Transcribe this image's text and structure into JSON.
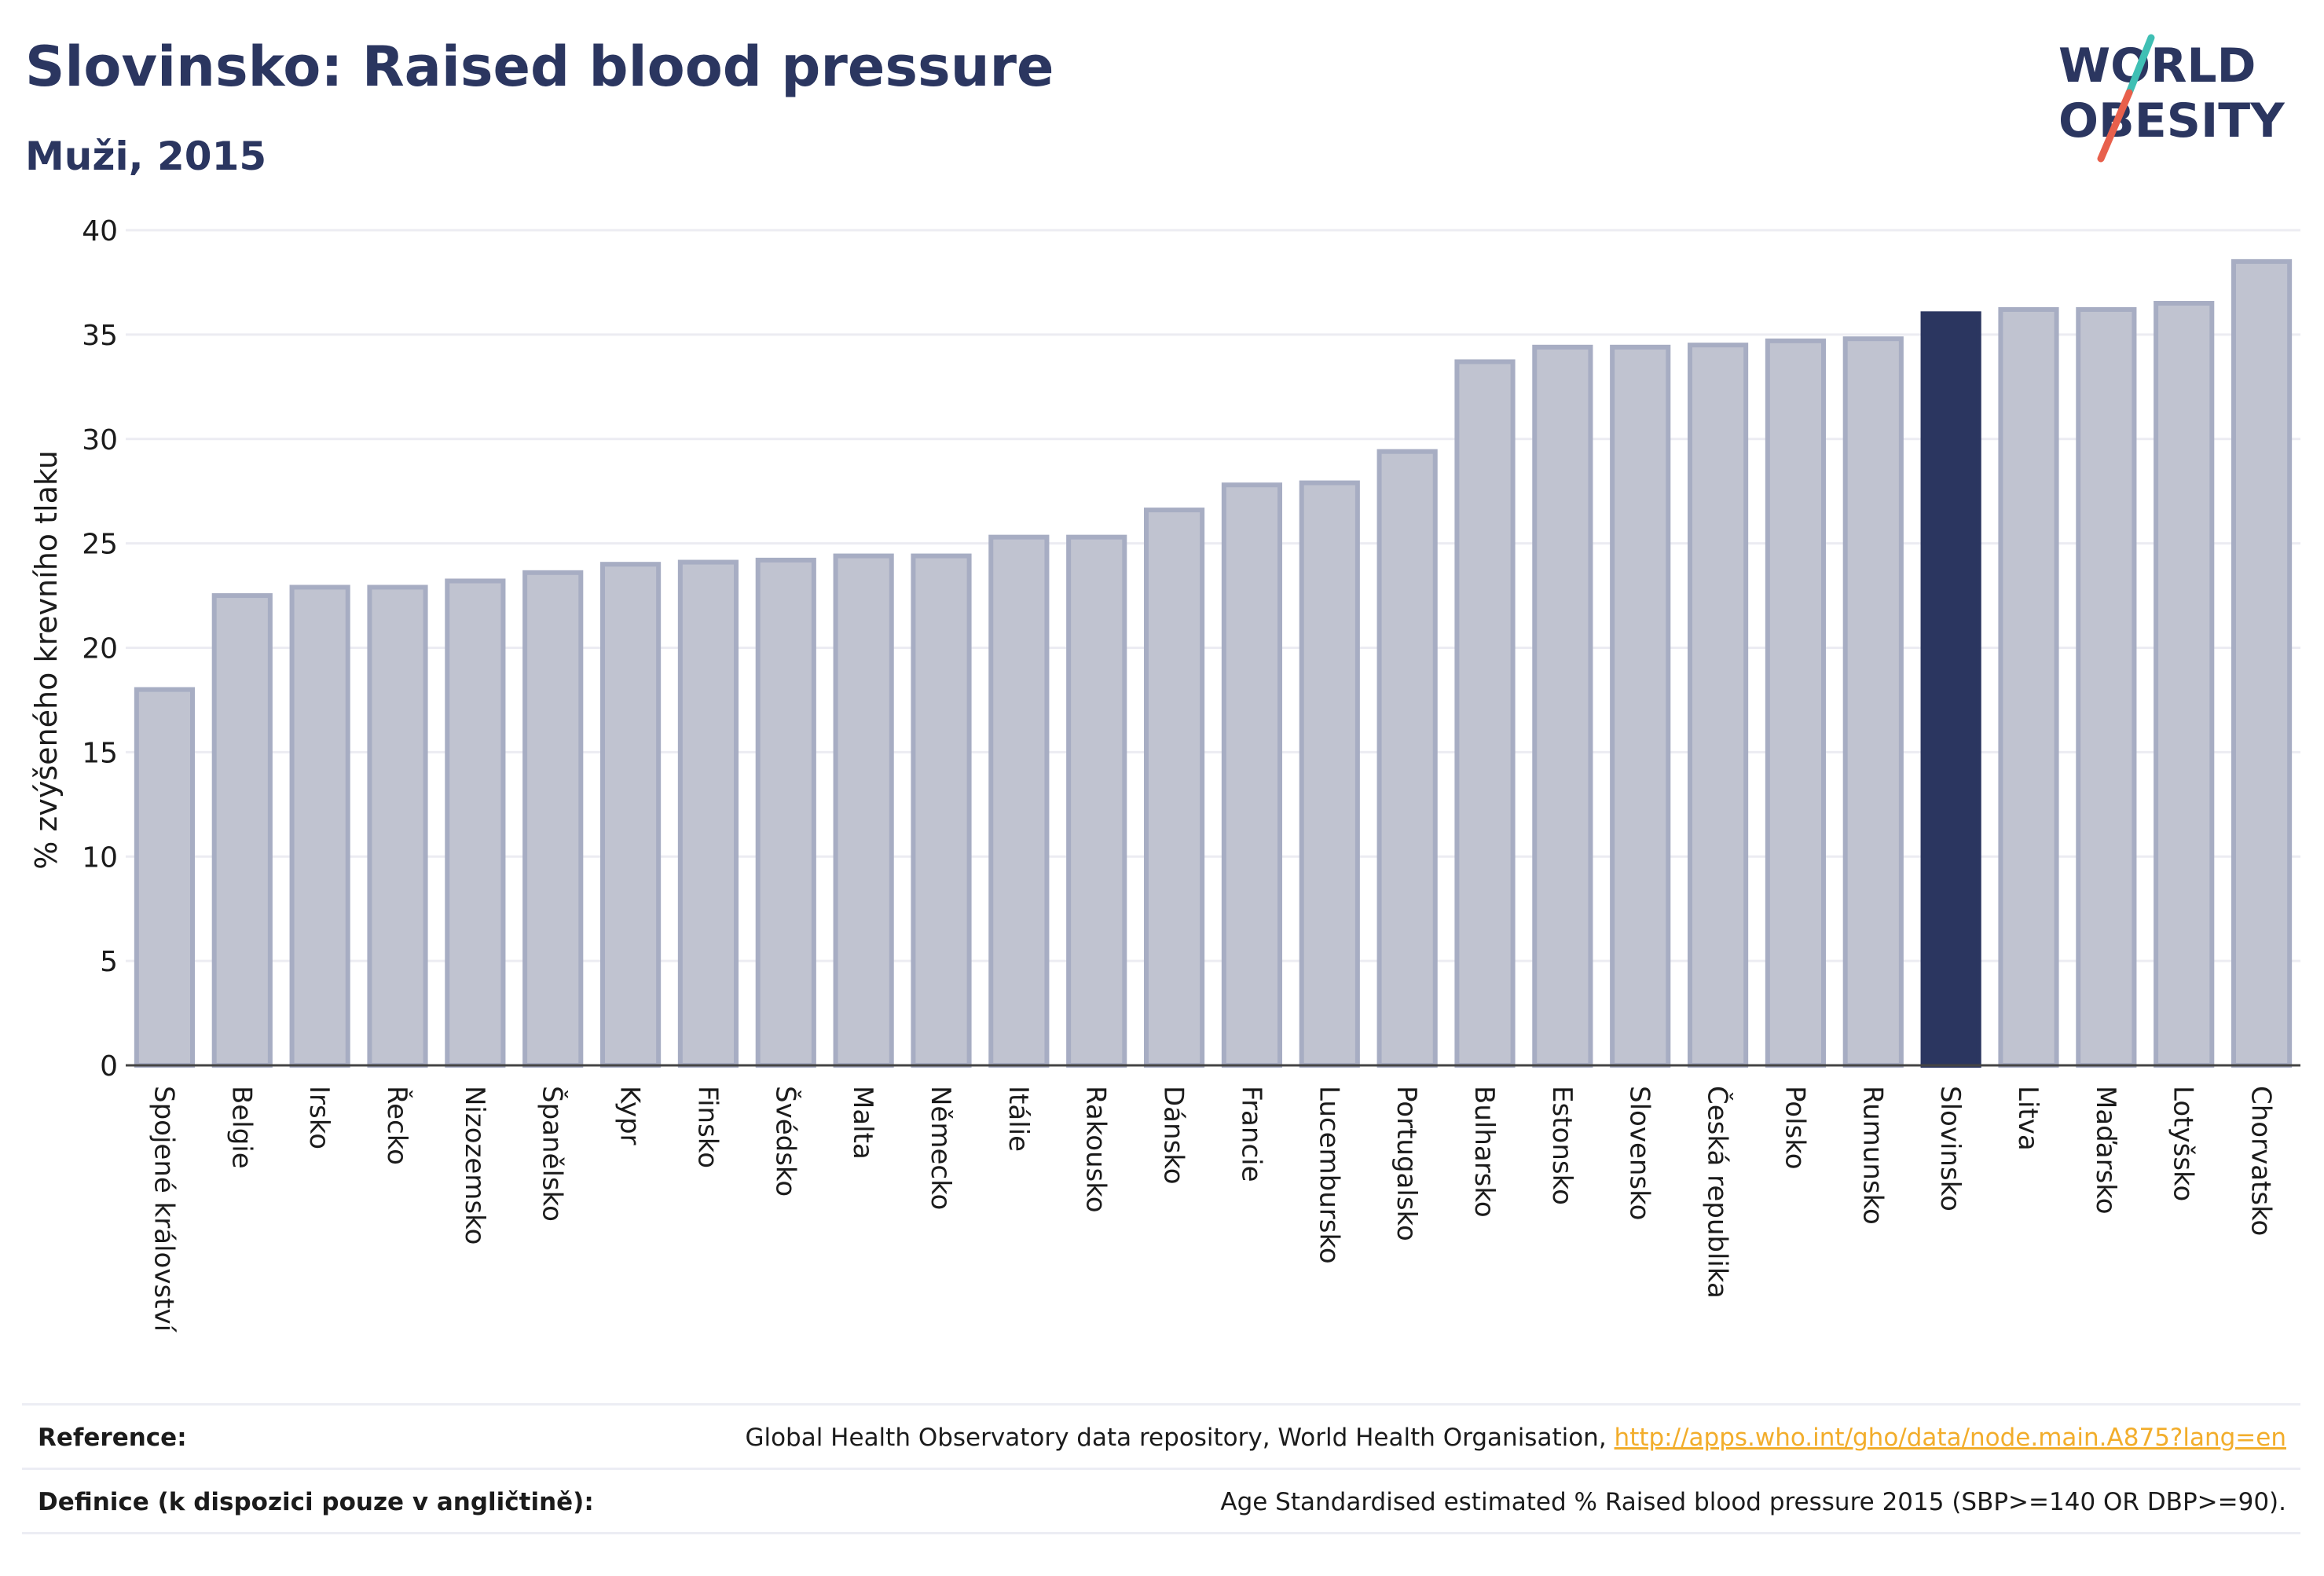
{
  "header": {
    "title": "Slovinsko: Raised blood pressure",
    "subtitle": "Muži, 2015"
  },
  "logo": {
    "line1": "WORLD",
    "line2": "OBESITY",
    "accent_teal": "#3fbfb4",
    "accent_red": "#e8604c"
  },
  "colors": {
    "bar_fill": "#c0c3d0",
    "bar_stroke": "#a7adc3",
    "highlight": "#2b3660",
    "text": "#2b3660",
    "grid": "#ececf2",
    "link": "#f2ad2b"
  },
  "chart_data": {
    "type": "bar",
    "title": "",
    "xlabel": "",
    "ylabel": "% zvýšeného krevního tlaku",
    "ylim": [
      0,
      40
    ],
    "yticks": [
      0,
      5,
      10,
      15,
      20,
      25,
      30,
      35,
      40
    ],
    "grid": true,
    "highlight_category": "Slovinsko",
    "categories": [
      "Spojené království",
      "Belgie",
      "Irsko",
      "Řecko",
      "Nizozemsko",
      "Španělsko",
      "Kypr",
      "Finsko",
      "Švédsko",
      "Malta",
      "Německo",
      "Itálie",
      "Rakousko",
      "Dánsko",
      "Francie",
      "Lucembursko",
      "Portugalsko",
      "Bulharsko",
      "Estonsko",
      "Slovensko",
      "Česká republika",
      "Polsko",
      "Rumunsko",
      "Slovinsko",
      "Litva",
      "Maďarsko",
      "Lotyšsko",
      "Chorvatsko"
    ],
    "values": [
      18.0,
      22.5,
      22.9,
      22.9,
      23.2,
      23.6,
      24.0,
      24.1,
      24.2,
      24.4,
      24.4,
      25.3,
      25.3,
      26.6,
      27.8,
      27.9,
      29.4,
      33.7,
      34.4,
      34.4,
      34.5,
      34.7,
      34.8,
      36.0,
      36.2,
      36.2,
      36.5,
      38.5
    ]
  },
  "footer": {
    "reference_label": "Reference:",
    "reference_text": "Global Health Observatory data repository, World Health Organisation, ",
    "reference_link": "http://apps.who.int/gho/data/node.main.A875?lang=en",
    "definition_label": "Definice (k dispozici pouze v angličtině):",
    "definition_text": "Age Standardised estimated % Raised blood pressure 2015 (SBP>=140 OR DBP>=90)."
  }
}
